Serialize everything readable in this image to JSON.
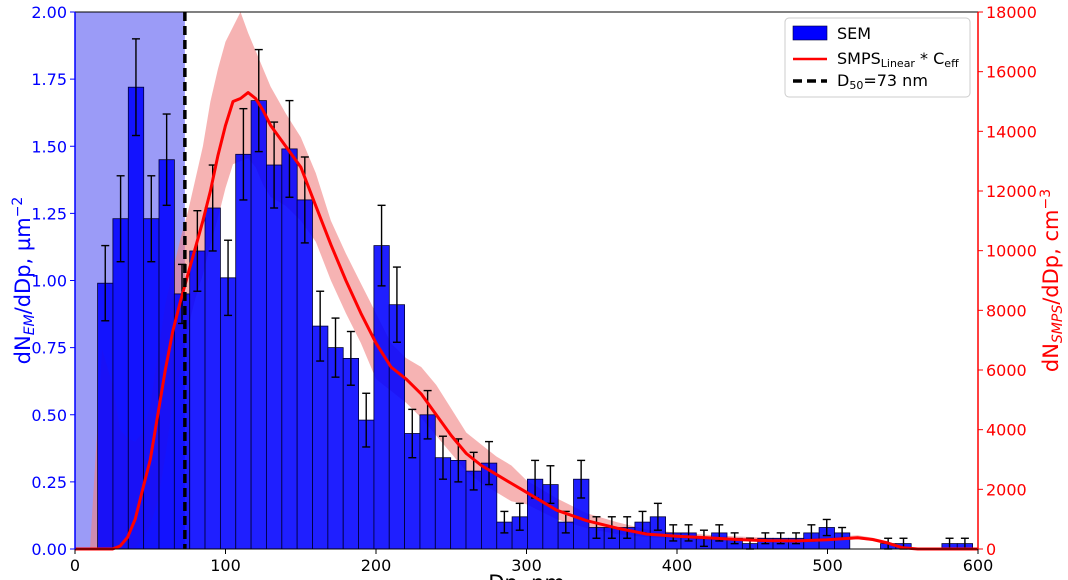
{
  "chart_data": {
    "type": "bar",
    "x_label": "Dp, nm",
    "xlim": [
      0,
      600
    ],
    "x_ticks": [
      "0",
      "100",
      "200",
      "300",
      "400",
      "500",
      "600"
    ],
    "y_left": {
      "label_main": "dN",
      "label_sub": "EM",
      "label_rest": "/dDp, µm",
      "label_sup": "−2",
      "lim": [
        0,
        2.0
      ],
      "ticks": [
        "0.00",
        "0.25",
        "0.50",
        "0.75",
        "1.00",
        "1.25",
        "1.50",
        "1.75",
        "2.00"
      ],
      "color": "#0000ff"
    },
    "y_right": {
      "label_main": "dN",
      "label_sub": "SMPS",
      "label_rest": "/dDp, cm",
      "label_sup": "−3",
      "lim": [
        0,
        18000
      ],
      "ticks": [
        "0",
        "2000",
        "4000",
        "6000",
        "8000",
        "10000",
        "12000",
        "14000",
        "16000",
        "18000"
      ],
      "color": "#ff0000"
    },
    "legend": {
      "position": "top-right",
      "sem_label": "SEM",
      "smps_main": "SMPS",
      "smps_sub": "Linear",
      "smps_mid": " * C",
      "smps_sub2": "eff",
      "d50_main": "D",
      "d50_sub": "50",
      "d50_rest": "=73 nm"
    },
    "d50": 73,
    "shaded_region_below_d50": true,
    "bar_width": 10.2,
    "sem_series": {
      "name": "SEM",
      "color": "#0000ff",
      "x": [
        20.1,
        30.3,
        40.5,
        50.7,
        60.9,
        71.1,
        81.3,
        91.5,
        101.7,
        111.9,
        122.1,
        132.3,
        142.5,
        152.7,
        162.9,
        173.1,
        183.3,
        193.5,
        203.7,
        213.9,
        224.1,
        234.3,
        244.5,
        254.7,
        264.9,
        275.1,
        285.3,
        295.5,
        305.7,
        315.9,
        326.1,
        336.3,
        346.5,
        356.7,
        366.9,
        377.1,
        387.3,
        397.5,
        407.7,
        417.9,
        428.1,
        438.3,
        448.5,
        458.7,
        468.9,
        479.1,
        489.3,
        499.5,
        509.7,
        519.9,
        530.1,
        540.3,
        550.5,
        560.7,
        570.9,
        581.1,
        591.3
      ],
      "values": [
        0.99,
        1.23,
        1.72,
        1.23,
        1.45,
        0.95,
        1.11,
        1.27,
        1.01,
        1.47,
        1.67,
        1.43,
        1.49,
        1.3,
        0.83,
        0.75,
        0.71,
        0.48,
        1.13,
        0.91,
        0.43,
        0.5,
        0.34,
        0.33,
        0.29,
        0.32,
        0.1,
        0.12,
        0.26,
        0.24,
        0.1,
        0.26,
        0.08,
        0.08,
        0.08,
        0.1,
        0.12,
        0.06,
        0.06,
        0.04,
        0.06,
        0.04,
        0.02,
        0.04,
        0.04,
        0.04,
        0.06,
        0.08,
        0.06,
        0.0,
        0.0,
        0.02,
        0.02,
        0.0,
        0.0,
        0.02,
        0.02
      ],
      "errors": [
        0.14,
        0.16,
        0.18,
        0.16,
        0.17,
        0.11,
        0.15,
        0.16,
        0.14,
        0.17,
        0.19,
        0.16,
        0.18,
        0.16,
        0.13,
        0.11,
        0.1,
        0.1,
        0.15,
        0.14,
        0.09,
        0.09,
        0.08,
        0.08,
        0.07,
        0.08,
        0.04,
        0.05,
        0.07,
        0.07,
        0.04,
        0.07,
        0.04,
        0.04,
        0.04,
        0.04,
        0.05,
        0.03,
        0.03,
        0.03,
        0.03,
        0.02,
        0.02,
        0.02,
        0.02,
        0.02,
        0.03,
        0.03,
        0.02,
        0.0,
        0.0,
        0.02,
        0.02,
        0.0,
        0.0,
        0.02,
        0.02
      ]
    },
    "smps_series": {
      "name": "SMPS Linear * C eff",
      "color": "#ff0000",
      "band_color": "#f08080",
      "x": [
        0,
        10,
        18,
        25,
        30,
        35,
        40,
        45,
        50,
        55,
        60,
        65,
        70,
        75,
        80,
        85,
        90,
        95,
        100,
        105,
        110,
        115,
        120,
        125,
        130,
        140,
        150,
        160,
        170,
        180,
        190,
        200,
        210,
        220,
        230,
        240,
        250,
        260,
        270,
        280,
        290,
        300,
        320,
        340,
        360,
        380,
        400,
        420,
        440,
        460,
        480,
        500,
        520,
        530,
        540,
        550,
        560,
        570,
        580,
        590,
        600
      ],
      "y": [
        0,
        0,
        0,
        0,
        100,
        400,
        1000,
        2000,
        3000,
        4500,
        6000,
        7300,
        8300,
        9200,
        10100,
        11000,
        12000,
        13200,
        14200,
        15000,
        15100,
        15300,
        15100,
        14700,
        14200,
        13500,
        12800,
        11500,
        10200,
        9000,
        7900,
        6900,
        6100,
        5700,
        5200,
        4500,
        3800,
        3200,
        2800,
        2500,
        2200,
        1900,
        1300,
        950,
        700,
        500,
        430,
        380,
        320,
        280,
        270,
        310,
        380,
        320,
        200,
        40,
        0,
        0,
        0,
        0,
        0
      ],
      "lower": [
        0,
        0,
        0,
        0,
        0,
        0,
        50,
        300,
        800,
        1600,
        3100,
        4900,
        6000,
        7400,
        8400,
        9200,
        10200,
        11100,
        12100,
        12900,
        13000,
        13100,
        12800,
        12200,
        11800,
        11500,
        11000,
        10300,
        9000,
        7900,
        6900,
        5700,
        5300,
        4900,
        4400,
        3800,
        3200,
        2600,
        2200,
        1900,
        1600,
        1500,
        1000,
        700,
        500,
        400,
        330,
        290,
        260,
        230,
        220,
        260,
        330,
        270,
        150,
        20,
        0,
        0,
        0,
        0,
        0
      ],
      "upper": [
        0,
        0,
        6700,
        5500,
        4000,
        3700,
        3600,
        3900,
        4800,
        6500,
        8200,
        9300,
        10400,
        11300,
        12400,
        13500,
        15000,
        16100,
        17000,
        17500,
        18000,
        17300,
        16700,
        16100,
        15500,
        14600,
        13800,
        12600,
        11000,
        9900,
        8900,
        7900,
        6900,
        6400,
        6100,
        5500,
        4700,
        3900,
        3500,
        3100,
        2800,
        2300,
        1700,
        1200,
        900,
        650,
        550,
        480,
        420,
        380,
        360,
        390,
        460,
        380,
        260,
        60,
        0,
        0,
        0,
        0,
        0
      ]
    }
  }
}
